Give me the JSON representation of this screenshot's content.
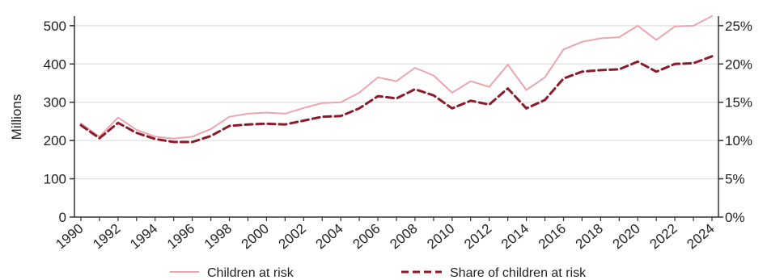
{
  "chart_data": {
    "type": "line",
    "title": "",
    "x": [
      1990,
      1991,
      1992,
      1993,
      1994,
      1995,
      1996,
      1997,
      1998,
      1999,
      2000,
      2001,
      2002,
      2003,
      2004,
      2005,
      2006,
      2007,
      2008,
      2009,
      2010,
      2011,
      2012,
      2013,
      2014,
      2015,
      2016,
      2017,
      2018,
      2019,
      2020,
      2021,
      2022,
      2023,
      2024
    ],
    "x_tick_labels": [
      "1990",
      "1992",
      "1994",
      "1996",
      "1998",
      "2000",
      "2002",
      "2004",
      "2006",
      "2008",
      "2010",
      "2012",
      "2014",
      "2016",
      "2018",
      "2020",
      "2022",
      "2024"
    ],
    "ylabel": "Millions",
    "ylim": [
      0,
      525
    ],
    "y_ticks": [
      0,
      100,
      200,
      300,
      400,
      500
    ],
    "y_tick_labels": [
      "0",
      "100",
      "200",
      "300",
      "400",
      "500"
    ],
    "y2lim": [
      0,
      26.25
    ],
    "y2_ticks": [
      0,
      5,
      10,
      15,
      20,
      25
    ],
    "y2_tick_labels": [
      "0%",
      "5%",
      "10%",
      "15%",
      "20%",
      "25%"
    ],
    "grid": true,
    "legend_position": "bottom",
    "series": [
      {
        "name": "Children at risk",
        "axis": "left",
        "style": "solid",
        "color": "#eba5ad",
        "values": [
          245,
          210,
          260,
          228,
          210,
          205,
          210,
          230,
          262,
          270,
          273,
          270,
          285,
          298,
          300,
          325,
          365,
          355,
          390,
          370,
          325,
          355,
          340,
          398,
          332,
          365,
          438,
          458,
          467,
          470,
          500,
          463,
          498,
          500,
          525
        ]
      },
      {
        "name": "Share of children at risk",
        "axis": "right",
        "style": "dashed",
        "color": "#8b1a2b",
        "values": [
          12.0,
          10.3,
          12.3,
          11.0,
          10.2,
          9.8,
          9.8,
          10.6,
          11.9,
          12.1,
          12.2,
          12.1,
          12.6,
          13.1,
          13.2,
          14.2,
          15.8,
          15.5,
          16.7,
          15.9,
          14.2,
          15.2,
          14.7,
          16.8,
          14.2,
          15.3,
          18.1,
          19.0,
          19.2,
          19.3,
          20.3,
          19.0,
          20.0,
          20.1,
          21.0
        ]
      }
    ]
  }
}
